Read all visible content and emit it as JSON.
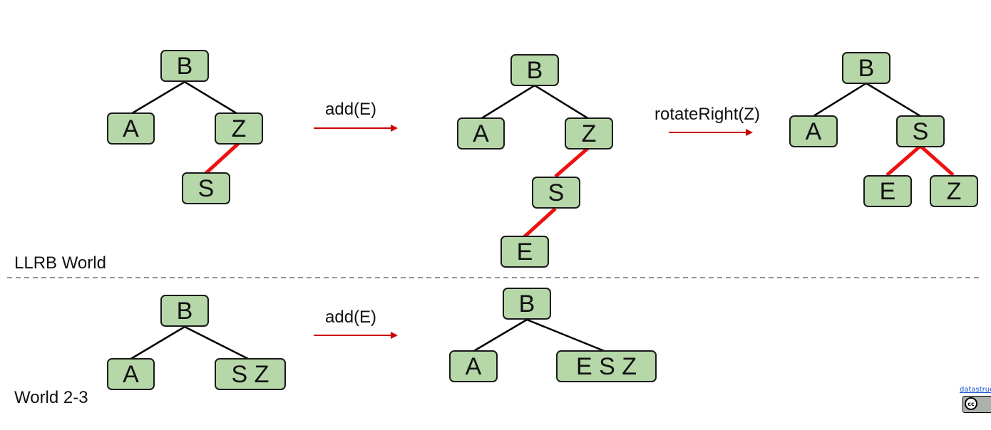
{
  "colors": {
    "node_fill": "#b6d7a8",
    "red_link": "#ee1111",
    "arrow": "#cc0000"
  },
  "sections": {
    "llrb": "LLRB World",
    "two_three": "World 2-3"
  },
  "operations": {
    "add_top": "add(E)",
    "rotate": "rotateRight(Z)",
    "add_bottom": "add(E)"
  },
  "llrb_before": {
    "B": "B",
    "A": "A",
    "Z": "Z",
    "S": "S"
  },
  "llrb_after_add": {
    "B": "B",
    "A": "A",
    "Z": "Z",
    "S": "S",
    "E": "E"
  },
  "llrb_after_rotate": {
    "B": "B",
    "A": "A",
    "S": "S",
    "E": "E",
    "Z": "Z"
  },
  "tt_before": {
    "B": "B",
    "A": "A",
    "SZ": "S Z"
  },
  "tt_after": {
    "B": "B",
    "A": "A",
    "ESZ": "E S Z"
  },
  "license": {
    "link": "datastructur.es",
    "badge": "cc-by icon"
  }
}
